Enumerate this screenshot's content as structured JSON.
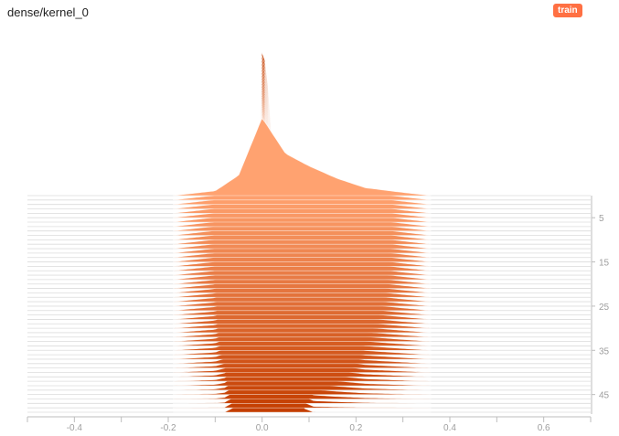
{
  "header": {
    "title": "dense/kernel_0",
    "run_badge": "train"
  },
  "colors": {
    "front": "#ffa270",
    "back": "#c43e00",
    "badge": "#ff7043"
  },
  "chart_data": {
    "type": "histogram-ridgeline",
    "title": "dense/kernel_0",
    "legend": [
      "train"
    ],
    "x_range": [
      -0.5,
      0.7
    ],
    "x_ticks": [
      -0.4,
      -0.2,
      0.0,
      0.2,
      0.4,
      0.6
    ],
    "x_tick_labels": [
      "-0.4",
      "-0.2",
      "0.0",
      "0.2",
      "0.4",
      "0.6"
    ],
    "step_range": [
      0,
      49
    ],
    "step_ticks": [
      5,
      15,
      25,
      35,
      45
    ],
    "step_tick_labels": [
      "5",
      "15",
      "25",
      "35",
      "45"
    ],
    "step_count": 50,
    "density_max": 1.0,
    "first_step": {
      "x": [
        -0.19,
        -0.1,
        -0.05,
        0.0,
        0.05,
        0.1,
        0.16,
        0.22,
        0.3,
        0.36
      ],
      "density": [
        0.0,
        0.03,
        0.13,
        0.5,
        0.27,
        0.19,
        0.11,
        0.05,
        0.02,
        0.0
      ]
    },
    "last_step": {
      "x": [
        -0.08,
        -0.05,
        -0.04,
        -0.02,
        -0.01,
        0.0,
        0.01,
        0.03,
        0.05,
        0.06,
        0.08,
        0.09,
        0.11
      ],
      "density": [
        0.0,
        0.02,
        0.035,
        0.19,
        0.45,
        0.99,
        0.9,
        0.55,
        0.3,
        0.2,
        0.04,
        0.01,
        0.0
      ]
    }
  }
}
